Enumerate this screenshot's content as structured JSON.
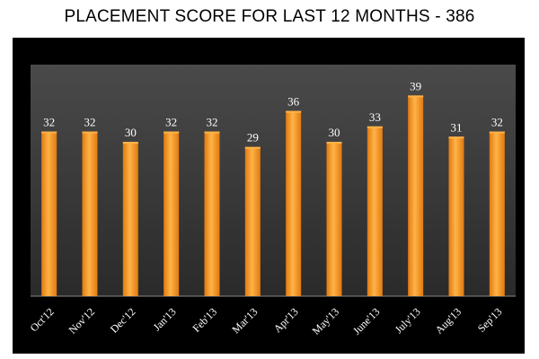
{
  "chart_data": {
    "type": "bar",
    "title": "PLACEMENT SCORE FOR LAST 12 MONTHS - 386",
    "categories": [
      "Oct'12",
      "Nov'12",
      "Dec'12",
      "Jan'13",
      "Feb'13",
      "Mar'13",
      "Apr'13",
      "May'13",
      "June'13",
      "July'13",
      "Aug'13",
      "Sep'13"
    ],
    "values": [
      32,
      32,
      30,
      32,
      32,
      29,
      36,
      30,
      33,
      39,
      31,
      32
    ],
    "ylim": [
      0,
      45
    ],
    "grid": false,
    "legend": "none",
    "colors": {
      "bar_light": "#ffb347",
      "bar_dark": "#e07a10",
      "plot_bg_top": "#4a4a4a",
      "plot_bg_bottom": "#2a2a2a",
      "frame_bg": "#000000",
      "label_color": "#ffffff"
    }
  }
}
